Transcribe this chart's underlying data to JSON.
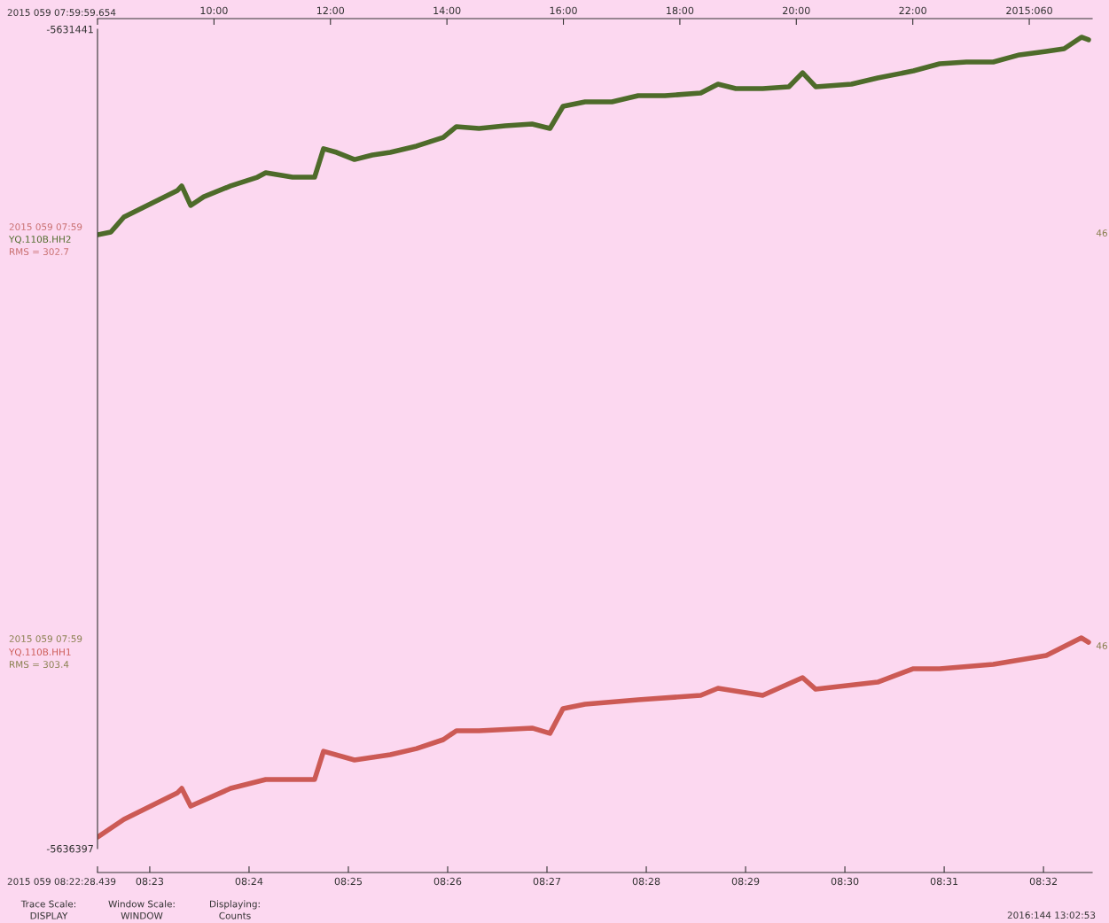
{
  "chart_data": {
    "type": "line",
    "xlim": [
      8.374566,
      8.5415
    ],
    "xticks": [
      {
        "value": 8.374566,
        "label": null
      },
      {
        "value": 8.383333,
        "label": "08:23"
      },
      {
        "value": 8.4,
        "label": "08:24"
      },
      {
        "value": 8.416667,
        "label": "08:25"
      },
      {
        "value": 8.433333,
        "label": "08:26"
      },
      {
        "value": 8.45,
        "label": "08:27"
      },
      {
        "value": 8.466667,
        "label": "08:28"
      },
      {
        "value": 8.483333,
        "label": "08:29"
      },
      {
        "value": 8.5,
        "label": "08:30"
      },
      {
        "value": 8.516667,
        "label": "08:31"
      },
      {
        "value": 8.533333,
        "label": "08:32"
      }
    ],
    "x2lim": [
      7.999904,
      25.08
    ],
    "x2ticks": [
      {
        "value": 7.999904,
        "label": null
      },
      {
        "value": 10,
        "label": "10:00"
      },
      {
        "value": 12,
        "label": "12:00"
      },
      {
        "value": 14,
        "label": "14:00"
      },
      {
        "value": 16,
        "label": "16:00"
      },
      {
        "value": 18,
        "label": "18:00"
      },
      {
        "value": 20,
        "label": "20:00"
      },
      {
        "value": 22,
        "label": "22:00"
      },
      {
        "value": 24,
        "label": "2015:060"
      }
    ],
    "ylim": [
      -5636397,
      -5631441
    ],
    "yticks": [
      -5636397,
      -5631441
    ],
    "grid": false,
    "legend": false,
    "marker": "none",
    "line_style": "solid",
    "series": [
      {
        "name": "YQ.110B.HH2",
        "color": "#4e6b2a",
        "x": [
          8.3746,
          8.3768,
          8.379,
          8.382,
          8.385,
          8.388,
          8.3887,
          8.3902,
          8.3924,
          8.3969,
          8.4014,
          8.4028,
          8.4073,
          8.411,
          8.4125,
          8.4147,
          8.4177,
          8.4207,
          8.4237,
          8.4281,
          8.4326,
          8.4348,
          8.4386,
          8.443,
          8.4475,
          8.4505,
          8.4527,
          8.4564,
          8.4609,
          8.4653,
          8.4698,
          8.4758,
          8.4787,
          8.4817,
          8.4862,
          8.4906,
          8.4929,
          8.4951,
          8.5011,
          8.5055,
          8.5115,
          8.5159,
          8.5204,
          8.5249,
          8.5293,
          8.5338,
          8.5368,
          8.5397,
          8.5409
        ],
        "values": [
          -5632684,
          -5632668,
          -5632577,
          -5632523,
          -5632470,
          -5632416,
          -5632389,
          -5632507,
          -5632454,
          -5632389,
          -5632336,
          -5632309,
          -5632336,
          -5632336,
          -5632164,
          -5632186,
          -5632229,
          -5632202,
          -5632186,
          -5632148,
          -5632095,
          -5632030,
          -5632041,
          -5632025,
          -5632014,
          -5632041,
          -5631907,
          -5631880,
          -5631880,
          -5631843,
          -5631843,
          -5631827,
          -5631773,
          -5631800,
          -5631800,
          -5631789,
          -5631704,
          -5631789,
          -5631773,
          -5631736,
          -5631693,
          -5631650,
          -5631639,
          -5631639,
          -5631596,
          -5631575,
          -5631559,
          -5631489,
          -5631505
        ]
      },
      {
        "name": "YQ.110B.HH1",
        "color": "#cc5a55",
        "x": [
          8.3746,
          8.379,
          8.382,
          8.385,
          8.388,
          8.3887,
          8.3902,
          8.3969,
          8.4028,
          8.411,
          8.4125,
          8.4177,
          8.4237,
          8.4281,
          8.4326,
          8.4348,
          8.4386,
          8.4475,
          8.4505,
          8.4527,
          8.4564,
          8.4653,
          8.4758,
          8.4787,
          8.4862,
          8.4929,
          8.4951,
          8.5055,
          8.5115,
          8.5159,
          8.5249,
          8.5338,
          8.5397,
          8.5409
        ],
        "values": [
          -5636327,
          -5636220,
          -5636167,
          -5636113,
          -5636059,
          -5636033,
          -5636140,
          -5636033,
          -5635979,
          -5635979,
          -5635808,
          -5635861,
          -5635829,
          -5635792,
          -5635738,
          -5635684,
          -5635684,
          -5635668,
          -5635700,
          -5635550,
          -5635524,
          -5635497,
          -5635470,
          -5635427,
          -5635470,
          -5635363,
          -5635433,
          -5635390,
          -5635309,
          -5635309,
          -5635283,
          -5635229,
          -5635122,
          -5635149
        ]
      }
    ],
    "annotations": [
      "2015 059 07:59",
      "RMS = 302.7",
      "46",
      "2015 059 07:59",
      "RMS = 303.4",
      "46",
      "Trace Scale:\nDISPLAY",
      "Window Scale:\nWINDOW",
      "Displaying:\nCounts",
      "2016:144 13:02:53",
      "2015 059 08:22:28.439",
      "2015 059 07:59:59.654"
    ]
  }
}
